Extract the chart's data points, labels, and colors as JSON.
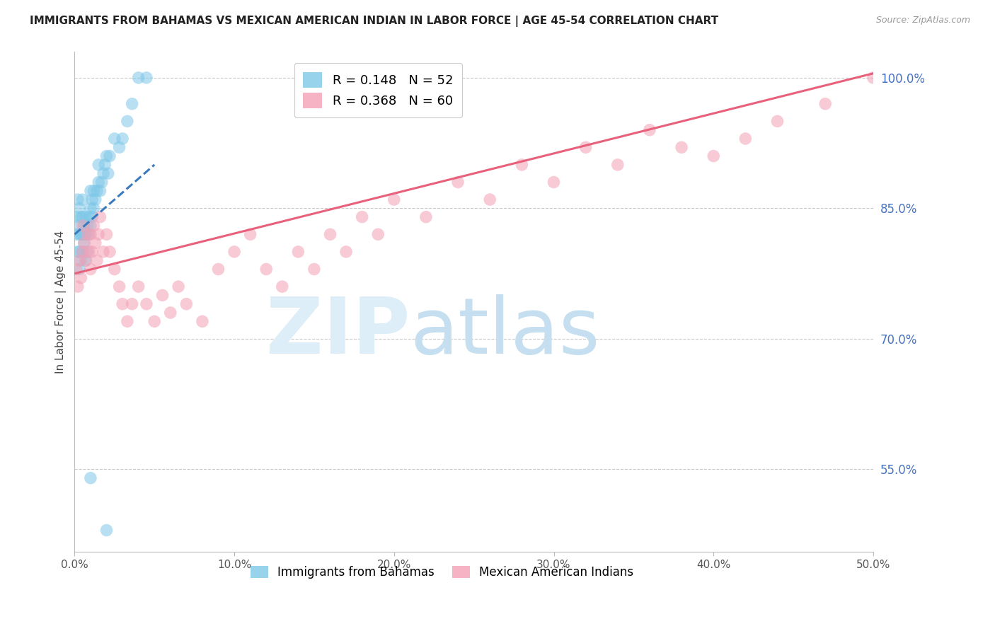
{
  "title": "IMMIGRANTS FROM BAHAMAS VS MEXICAN AMERICAN INDIAN IN LABOR FORCE | AGE 45-54 CORRELATION CHART",
  "source": "Source: ZipAtlas.com",
  "ylabel": "In Labor Force | Age 45-54",
  "r_blue": 0.148,
  "n_blue": 52,
  "r_pink": 0.368,
  "n_pink": 60,
  "legend_blue": "Immigrants from Bahamas",
  "legend_pink": "Mexican American Indians",
  "xlim": [
    0.0,
    0.5
  ],
  "ylim": [
    0.455,
    1.03
  ],
  "xticks": [
    0.0,
    0.1,
    0.2,
    0.3,
    0.4,
    0.5
  ],
  "xtick_labels": [
    "0.0%",
    "10.0%",
    "20.0%",
    "30.0%",
    "40.0%",
    "50.0%"
  ],
  "yticks": [
    0.55,
    0.7,
    0.85,
    1.0
  ],
  "ytick_labels": [
    "55.0%",
    "70.0%",
    "85.0%",
    "100.0%"
  ],
  "blue_color": "#7ec8e8",
  "pink_color": "#f4a0b5",
  "blue_line_color": "#3a7abf",
  "pink_line_color": "#e8607a",
  "title_color": "#222222",
  "axis_label_color": "#444444",
  "ytick_color": "#4472c4",
  "xtick_color": "#555555",
  "grid_color": "#bbbbbb",
  "figsize": [
    14.06,
    8.92
  ],
  "dpi": 100,
  "blue_x": [
    0.001,
    0.001,
    0.002,
    0.002,
    0.002,
    0.003,
    0.003,
    0.003,
    0.003,
    0.004,
    0.004,
    0.004,
    0.005,
    0.005,
    0.005,
    0.005,
    0.006,
    0.006,
    0.007,
    0.007,
    0.007,
    0.008,
    0.008,
    0.009,
    0.009,
    0.01,
    0.01,
    0.01,
    0.011,
    0.011,
    0.012,
    0.012,
    0.013,
    0.014,
    0.015,
    0.015,
    0.016,
    0.017,
    0.018,
    0.019,
    0.02,
    0.021,
    0.022,
    0.025,
    0.028,
    0.03,
    0.033,
    0.036,
    0.04,
    0.045,
    0.01,
    0.02
  ],
  "blue_y": [
    0.82,
    0.84,
    0.8,
    0.83,
    0.86,
    0.78,
    0.8,
    0.82,
    0.85,
    0.79,
    0.82,
    0.84,
    0.8,
    0.82,
    0.84,
    0.86,
    0.81,
    0.83,
    0.79,
    0.82,
    0.84,
    0.8,
    0.83,
    0.82,
    0.84,
    0.83,
    0.85,
    0.87,
    0.84,
    0.86,
    0.85,
    0.87,
    0.86,
    0.87,
    0.88,
    0.9,
    0.87,
    0.88,
    0.89,
    0.9,
    0.91,
    0.89,
    0.91,
    0.93,
    0.92,
    0.93,
    0.95,
    0.97,
    1.0,
    1.0,
    0.54,
    0.48
  ],
  "pink_x": [
    0.001,
    0.002,
    0.003,
    0.004,
    0.005,
    0.005,
    0.006,
    0.007,
    0.008,
    0.009,
    0.01,
    0.01,
    0.011,
    0.012,
    0.013,
    0.014,
    0.015,
    0.016,
    0.018,
    0.02,
    0.022,
    0.025,
    0.028,
    0.03,
    0.033,
    0.036,
    0.04,
    0.045,
    0.05,
    0.055,
    0.06,
    0.065,
    0.07,
    0.08,
    0.09,
    0.1,
    0.11,
    0.12,
    0.13,
    0.14,
    0.15,
    0.16,
    0.17,
    0.18,
    0.19,
    0.2,
    0.22,
    0.24,
    0.26,
    0.28,
    0.3,
    0.32,
    0.34,
    0.36,
    0.38,
    0.4,
    0.42,
    0.44,
    0.47,
    0.5
  ],
  "pink_y": [
    0.78,
    0.76,
    0.79,
    0.77,
    0.8,
    0.83,
    0.81,
    0.79,
    0.82,
    0.8,
    0.78,
    0.82,
    0.8,
    0.83,
    0.81,
    0.79,
    0.82,
    0.84,
    0.8,
    0.82,
    0.8,
    0.78,
    0.76,
    0.74,
    0.72,
    0.74,
    0.76,
    0.74,
    0.72,
    0.75,
    0.73,
    0.76,
    0.74,
    0.72,
    0.78,
    0.8,
    0.82,
    0.78,
    0.76,
    0.8,
    0.78,
    0.82,
    0.8,
    0.84,
    0.82,
    0.86,
    0.84,
    0.88,
    0.86,
    0.9,
    0.88,
    0.92,
    0.9,
    0.94,
    0.92,
    0.91,
    0.93,
    0.95,
    0.97,
    1.0
  ],
  "blue_trend_x": [
    0.0,
    0.05
  ],
  "blue_trend_y": [
    0.82,
    0.9
  ],
  "pink_trend_x": [
    0.0,
    0.5
  ],
  "pink_trend_y": [
    0.775,
    1.005
  ]
}
